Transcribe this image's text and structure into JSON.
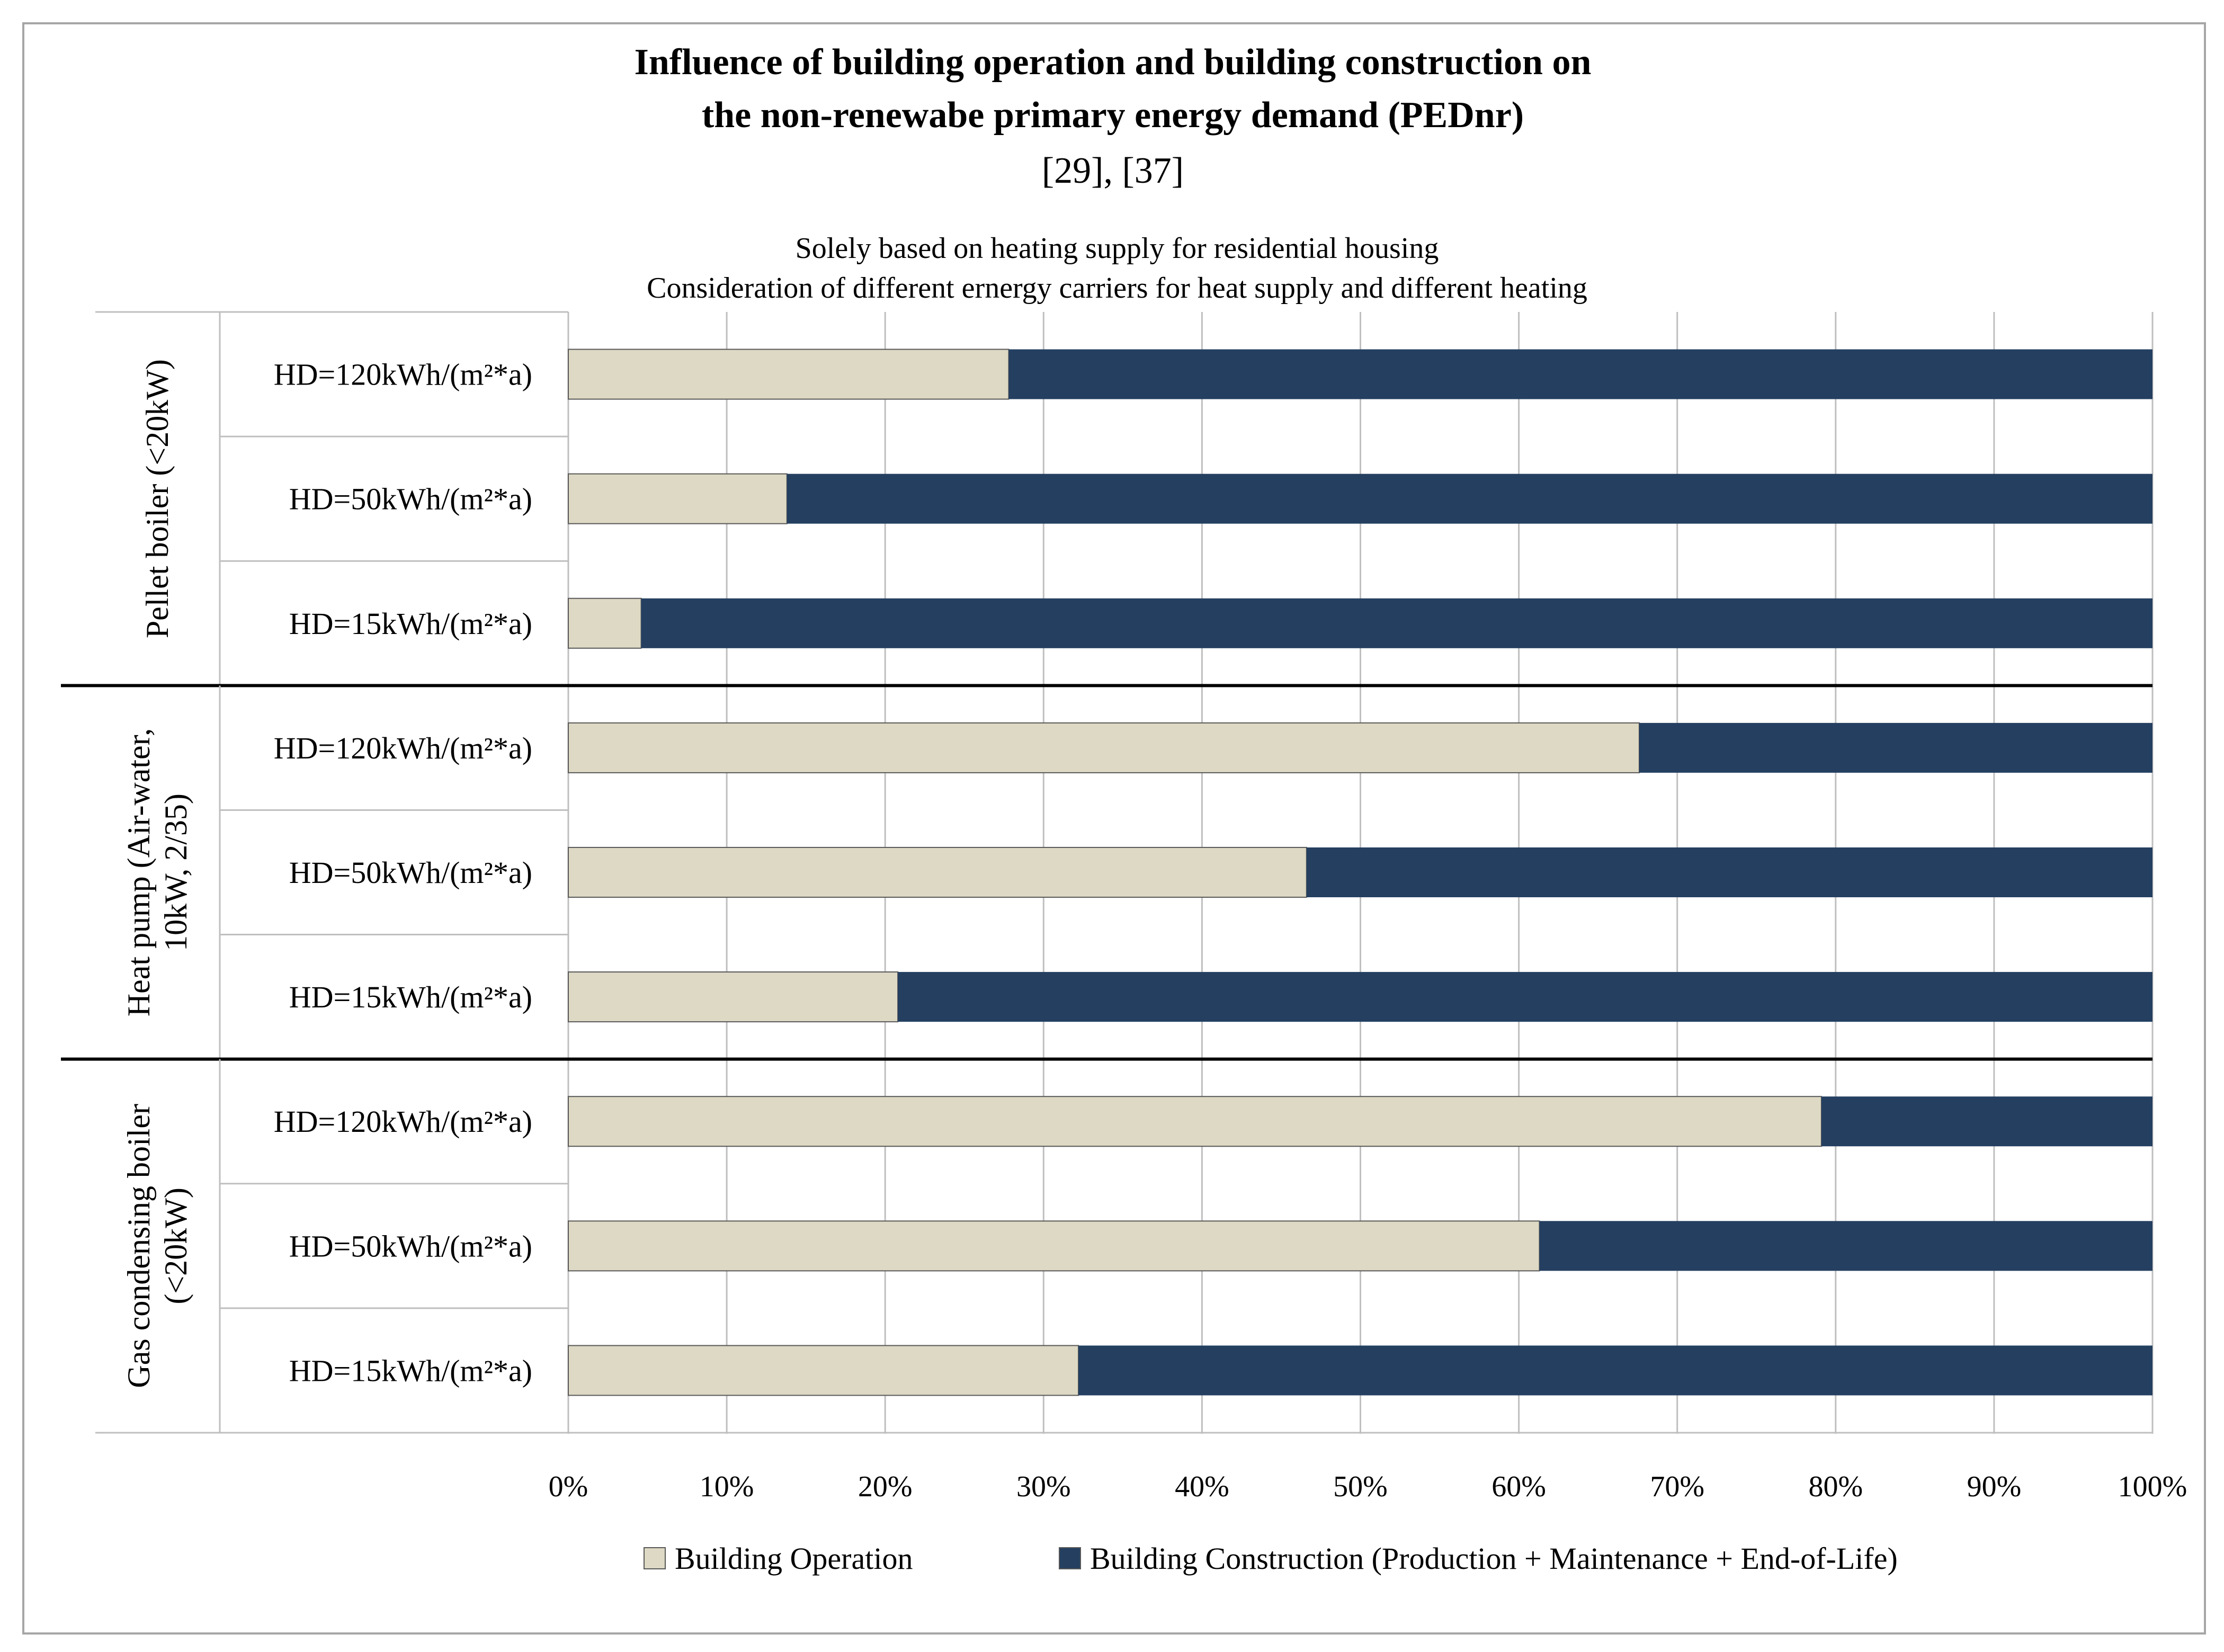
{
  "chart_data": {
    "type": "bar",
    "orientation": "horizontal",
    "stacked": "percent",
    "title_line1": "Influence of building operation and building construction on",
    "title_line2": "the non-renewabe primary energy demand (PEDnr)",
    "title_refs": "[29], [37]",
    "subtitle_line1": "Solely based on heating supply for residential housing",
    "subtitle_line2": "Consideration of different ernergy carriers for heat supply and different heating",
    "xlim": [
      0,
      100
    ],
    "x_ticks": [
      "0%",
      "10%",
      "20%",
      "30%",
      "40%",
      "50%",
      "60%",
      "70%",
      "80%",
      "90%",
      "100%"
    ],
    "grid": true,
    "legend_position": "bottom",
    "groups": [
      {
        "label_lines": [
          "Pellet boiler (<20kW)"
        ],
        "categories": [
          "HD=120kWh/(m²*a)",
          "HD=50kWh/(m²*a)",
          "HD=15kWh/(m²*a)"
        ]
      },
      {
        "label_lines": [
          "Heat pump (Air-water,",
          "10kW, 2/35)"
        ],
        "categories": [
          "HD=120kWh/(m²*a)",
          "HD=50kWh/(m²*a)",
          "HD=15kWh/(m²*a)"
        ]
      },
      {
        "label_lines": [
          "Gas condensing boiler",
          "(<20kW)"
        ],
        "categories": [
          "HD=120kWh/(m²*a)",
          "HD=50kWh/(m²*a)",
          "HD=15kWh/(m²*a)"
        ]
      }
    ],
    "series": [
      {
        "name": "Building Operation",
        "color": "#ddd9c4",
        "values": [
          27.8,
          13.8,
          4.6,
          67.6,
          46.6,
          20.8,
          79.1,
          61.3,
          32.2
        ]
      },
      {
        "name": "Building Construction (Production + Maintenance + End-of-Life)",
        "color": "#243f60",
        "values": [
          72.2,
          86.2,
          95.4,
          32.4,
          53.4,
          79.2,
          20.9,
          38.7,
          67.8
        ]
      }
    ]
  }
}
